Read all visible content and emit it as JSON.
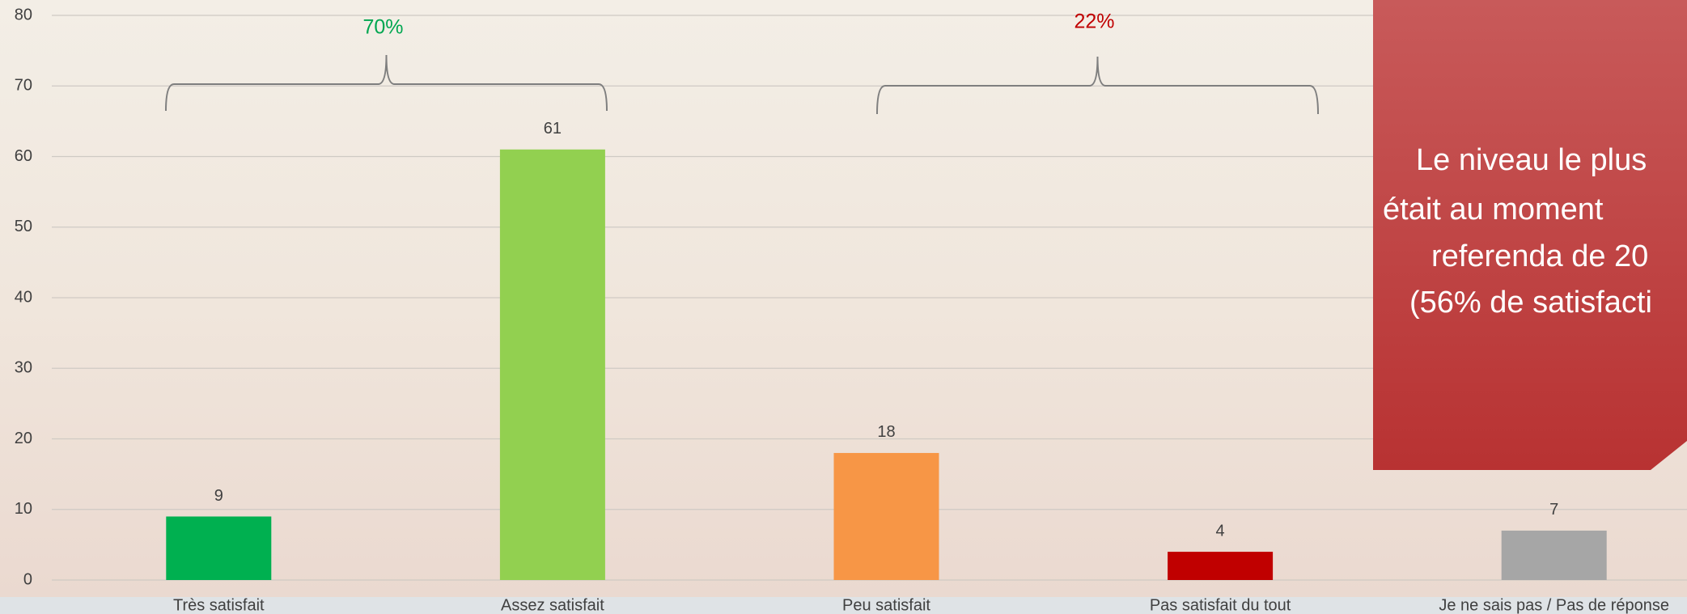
{
  "chart_data": {
    "type": "bar",
    "categories": [
      "Très satisfait",
      "Assez satisfait",
      "Peu satisfait",
      "Pas satisfait du tout",
      "Je ne sais pas /  Pas de réponse"
    ],
    "values": [
      9,
      61,
      18,
      4,
      7
    ],
    "colors": [
      "#00b050",
      "#92d050",
      "#f79646",
      "#c00000",
      "#a6a6a6"
    ],
    "ylim": [
      0,
      80
    ],
    "yticks": [
      0,
      10,
      20,
      30,
      40,
      50,
      60,
      70,
      80
    ],
    "grid": true,
    "annotations": [
      {
        "text": "70%",
        "color": "#00a650"
      },
      {
        "text": "22%",
        "color": "#c00000"
      }
    ],
    "callout": {
      "lines": [
        "Le niveau le plus",
        "était au moment",
        "referenda de 20",
        "(56%  de satisfacti"
      ],
      "color": "#c0393b"
    }
  }
}
